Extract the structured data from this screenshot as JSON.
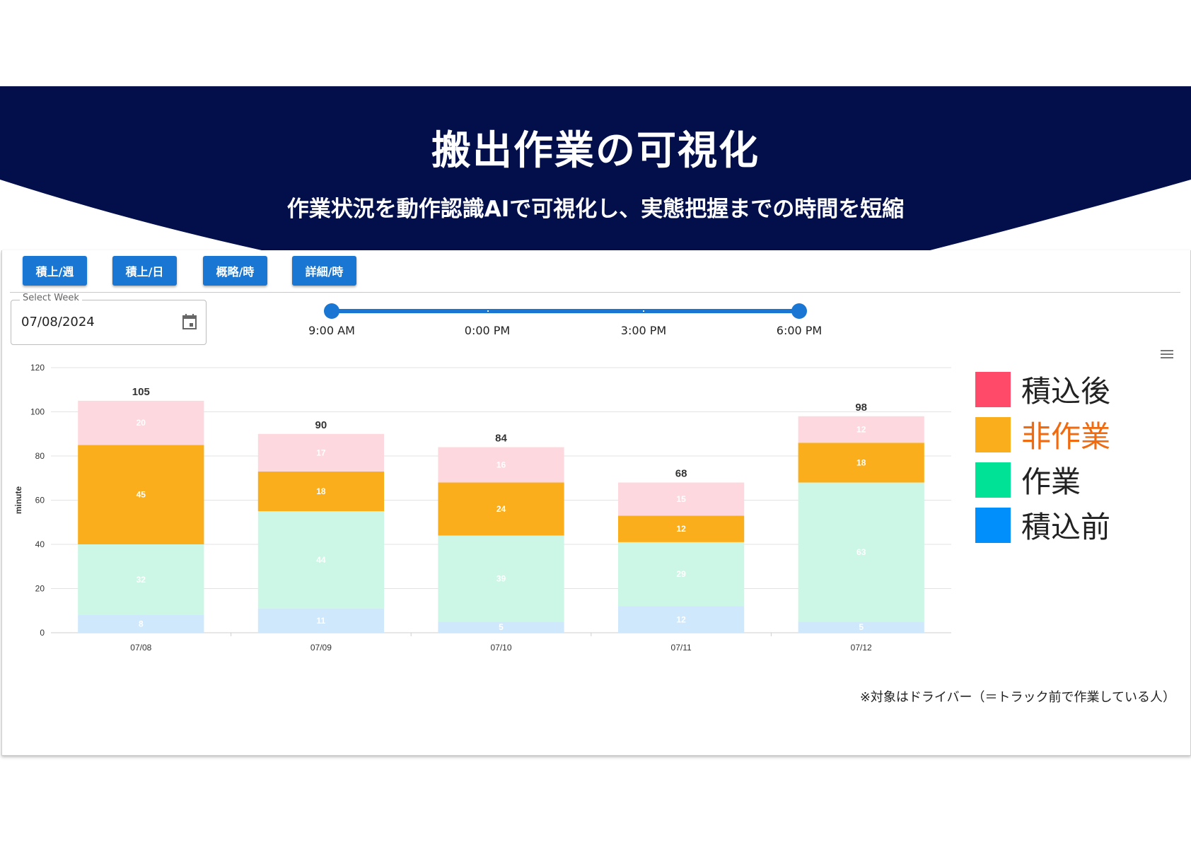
{
  "header": {
    "title": "搬出作業の可視化",
    "subtitle": "作業状況を動作認識AIで可視化し、実態把握までの時間を短縮",
    "background_color": "#020f4a"
  },
  "toolbar": {
    "buttons": [
      {
        "label": "積上/週"
      },
      {
        "label": "積上/日"
      },
      {
        "label": "概略/時"
      },
      {
        "label": "詳細/時"
      }
    ]
  },
  "date_picker": {
    "label": "Select Week",
    "value": "07/08/2024",
    "icon": "calendar-icon"
  },
  "time_slider": {
    "marks": [
      "9:00 AM",
      "0:00 PM",
      "3:00 PM",
      "6:00 PM"
    ],
    "range_start": "9:00 AM",
    "range_end": "6:00 PM"
  },
  "chart_menu": {
    "icon": "hamburger-menu-icon"
  },
  "chart_data": {
    "type": "bar",
    "stacked": true,
    "categories": [
      "07/08",
      "07/09",
      "07/10",
      "07/11",
      "07/12"
    ],
    "series": [
      {
        "name": "積込前",
        "color": "#cfe8fc",
        "values": [
          8,
          11,
          5,
          12,
          5
        ]
      },
      {
        "name": "作業",
        "color": "#ccf7e6",
        "values": [
          32,
          44,
          39,
          29,
          63
        ]
      },
      {
        "name": "非作業",
        "color": "#fbae1b",
        "values": [
          45,
          18,
          24,
          12,
          18
        ]
      },
      {
        "name": "積込後",
        "color": "#fdd9df",
        "values": [
          20,
          17,
          16,
          15,
          12
        ]
      }
    ],
    "totals": [
      105,
      90,
      84,
      68,
      98
    ],
    "ylabel": "minute",
    "ylim": [
      0,
      120
    ],
    "yticks": [
      0,
      20,
      40,
      60,
      80,
      100,
      120
    ],
    "grid": true,
    "legend_position": "right"
  },
  "legend": {
    "items": [
      {
        "label": "積込後",
        "color": "#ff4b69",
        "text_color": "#222222"
      },
      {
        "label": "非作業",
        "color": "#fbae1b",
        "text_color": "#f06a10"
      },
      {
        "label": "作業",
        "color": "#00e396",
        "text_color": "#222222"
      },
      {
        "label": "積込前",
        "color": "#008ffb",
        "text_color": "#222222"
      }
    ]
  },
  "footnote": "※対象はドライバー（＝トラック前で作業している人）"
}
